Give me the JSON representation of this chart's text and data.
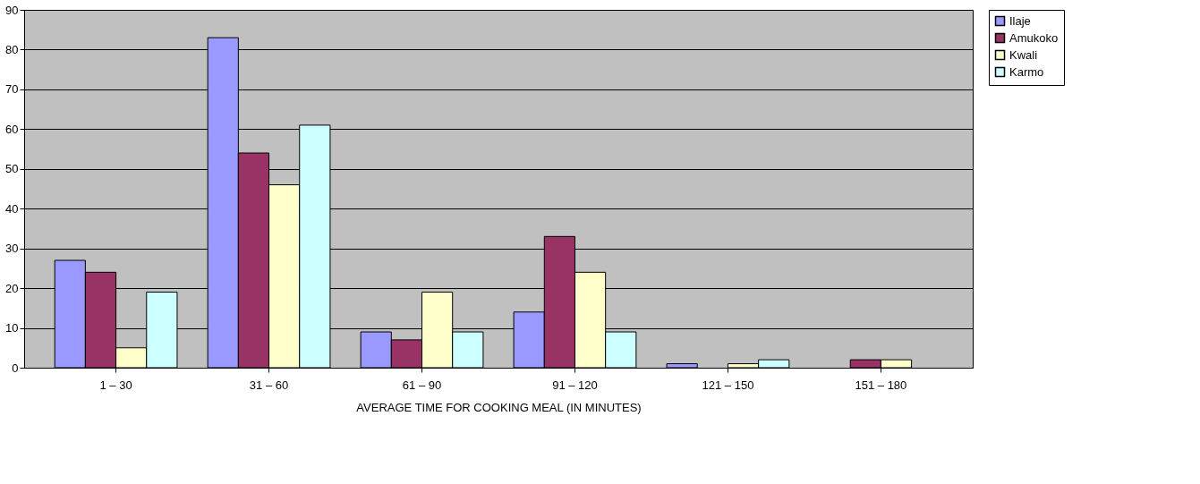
{
  "chart_data": {
    "type": "bar",
    "xlabel": "AVERAGE TIME FOR COOKING MEAL (IN MINUTES)",
    "categories": [
      "1 – 30",
      "31 – 60",
      "61 – 90",
      "91 – 120",
      "121 – 150",
      "151 – 180"
    ],
    "series": [
      {
        "name": "Ilaje",
        "color": "#9999ff",
        "values": [
          27,
          83,
          9,
          14,
          1,
          0
        ]
      },
      {
        "name": "Amukoko",
        "color": "#993366",
        "values": [
          24,
          54,
          7,
          33,
          0,
          2
        ]
      },
      {
        "name": "Kwali",
        "color": "#ffffcc",
        "values": [
          5,
          46,
          19,
          24,
          1,
          2
        ]
      },
      {
        "name": "Karmo",
        "color": "#ccffff",
        "values": [
          19,
          61,
          9,
          9,
          2,
          0
        ]
      }
    ],
    "ylim": [
      0,
      90
    ],
    "yticks": [
      0,
      10,
      20,
      30,
      40,
      50,
      60,
      70,
      80,
      90
    ],
    "grid": "y",
    "legend": "right"
  }
}
